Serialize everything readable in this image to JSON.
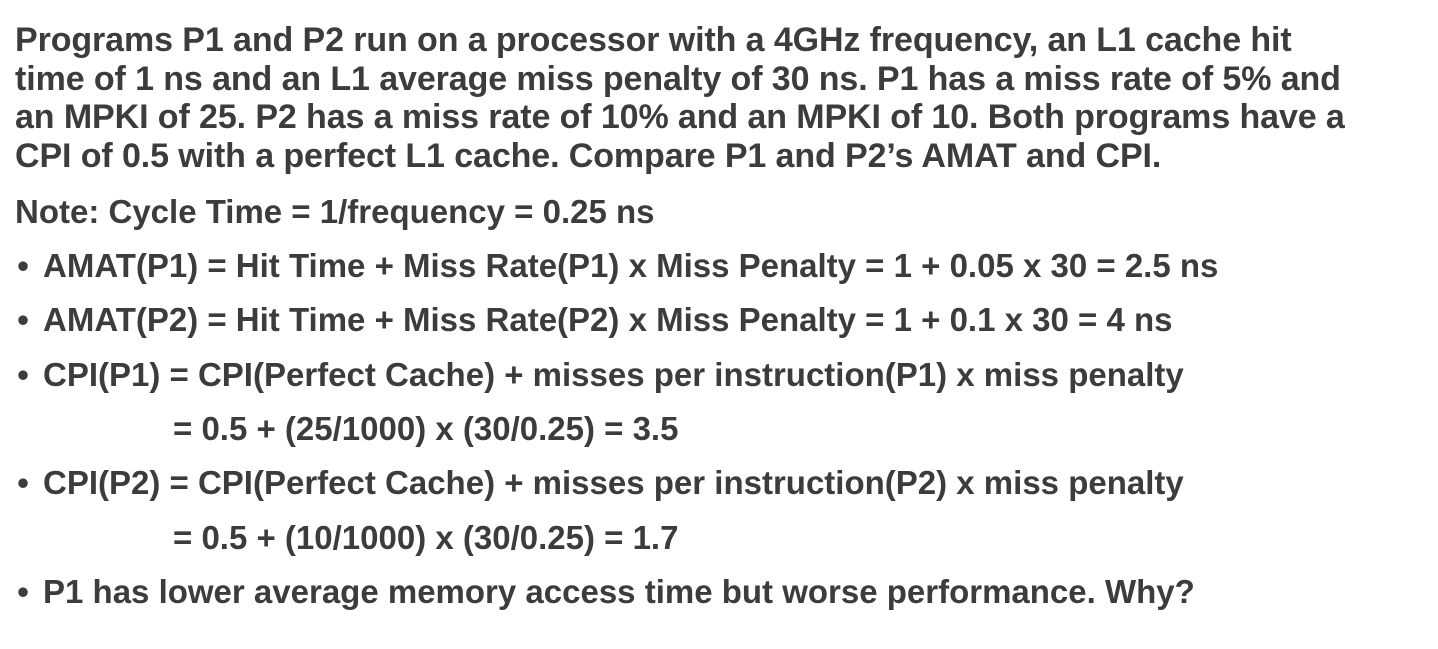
{
  "problem_lines": [
    "Programs P1 and P2 run on a processor with a 4GHz frequency, an L1 cache hit",
    "time of 1 ns and an L1 average miss penalty of 30 ns. P1 has a miss rate of 5% and",
    "an MPKI of 25. P2 has a miss rate of 10% and an MPKI of 10. Both programs have a",
    "CPI of 0.5 with a perfect L1 cache. Compare P1 and P2’s AMAT and CPI."
  ],
  "note": "Note: Cycle Time = 1/frequency = 0.25 ns",
  "bullet_symbol": "•",
  "bullets": [
    {
      "text": "AMAT(P1) = Hit Time + Miss Rate(P1) x Miss Penalty = 1 + 0.05 x 30 = 2.5 ns"
    },
    {
      "text": "AMAT(P2) = Hit Time + Miss Rate(P2) x Miss Penalty = 1 + 0.1 x 30 = 4 ns"
    },
    {
      "text": "CPI(P1) = CPI(Perfect Cache) + misses per instruction(P1) x miss penalty",
      "continuation": "= 0.5 + (25/1000) x (30/0.25) =  3.5"
    },
    {
      "text": "CPI(P2) = CPI(Perfect Cache) + misses per instruction(P2) x miss penalty",
      "continuation": "= 0.5 + (10/1000) x (30/0.25) =  1.7"
    },
    {
      "text": "P1 has lower average memory access time but worse performance. Why?"
    }
  ],
  "colors": {
    "text": "#3c3c3c",
    "background": "#ffffff"
  }
}
